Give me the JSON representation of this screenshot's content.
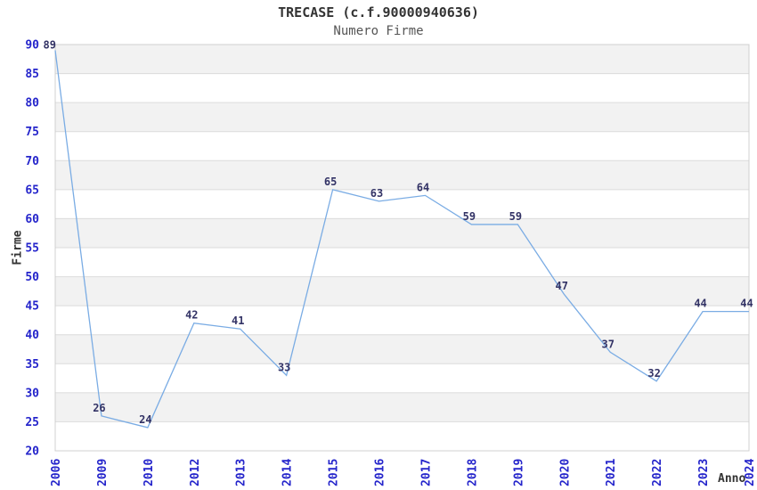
{
  "chart_data": {
    "type": "line",
    "title": "TRECASE (c.f.90000940636)",
    "subtitle": "Numero Firme",
    "xlabel": "Anno",
    "ylabel": "Firme",
    "categories": [
      "2006",
      "2009",
      "2010",
      "2012",
      "2013",
      "2014",
      "2015",
      "2016",
      "2017",
      "2018",
      "2019",
      "2020",
      "2021",
      "2022",
      "2023",
      "2024"
    ],
    "values": [
      89,
      26,
      24,
      42,
      41,
      33,
      65,
      63,
      64,
      59,
      59,
      47,
      37,
      32,
      44,
      44
    ],
    "ylim": [
      20,
      90
    ],
    "ytick_step": 5,
    "grid": true,
    "legend": false,
    "band_shading": true,
    "x_tick_rotation": -90,
    "colors": {
      "line": "#7AACE4",
      "tick_label": "#2525CB",
      "data_label": "#333366",
      "band": "#F2F2F2",
      "gridline": "#DBDBDB",
      "border": "#D0D0D0",
      "title": "#333333",
      "subtitle": "#555555",
      "axis_label": "#333333",
      "background": "#FFFFFF"
    }
  }
}
